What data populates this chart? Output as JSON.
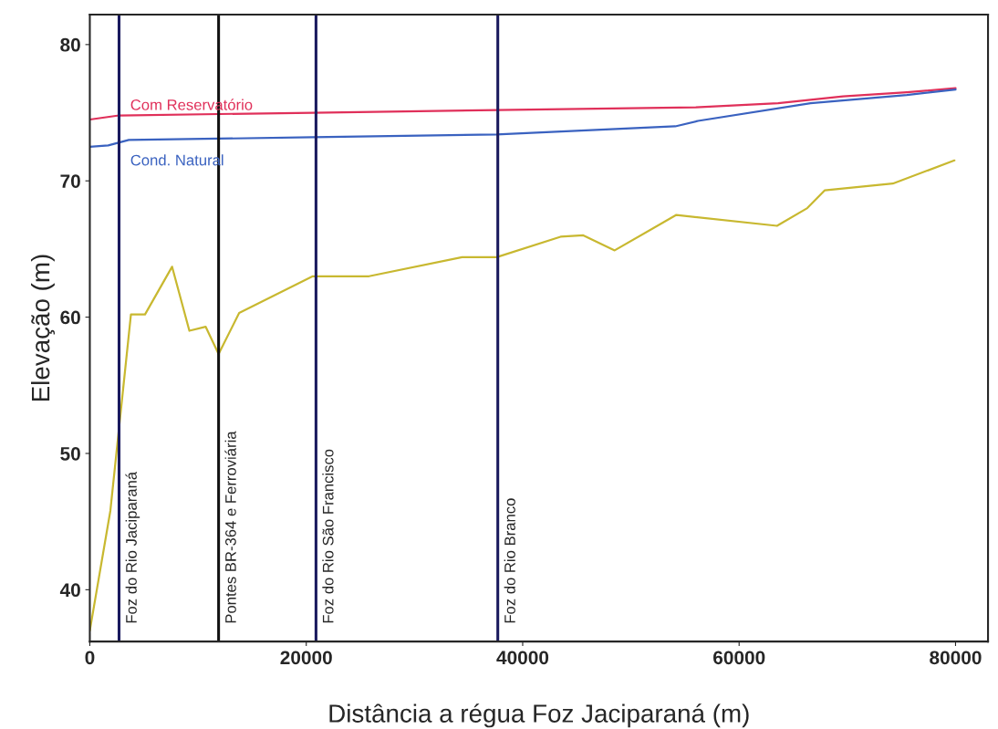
{
  "chart_data": {
    "type": "line",
    "xlabel": "Distância a régua Foz Jaciparaná (m)",
    "ylabel": "Elevação (m)",
    "xlim": [
      0,
      83000
    ],
    "xticks": [
      0,
      20000,
      40000,
      60000,
      80000
    ],
    "ylim": [
      36.2,
      82.2
    ],
    "yticks": [
      40,
      50,
      60,
      70,
      80
    ],
    "grid": false,
    "legend": false,
    "series": [
      {
        "name": "Com Reservatório",
        "color": "#e0305a",
        "x": [
          0,
          2700,
          20600,
          37600,
          56000,
          63600,
          69600,
          75500,
          80000
        ],
        "values": [
          74.5,
          74.8,
          75.0,
          75.2,
          75.4,
          75.7,
          76.2,
          76.5,
          76.8
        ]
      },
      {
        "name": "Cond. Natural",
        "color": "#3a62c0",
        "x": [
          0,
          1700,
          3600,
          20600,
          37600,
          54100,
          56200,
          66600,
          75500,
          80000
        ],
        "values": [
          72.5,
          72.6,
          73.0,
          73.2,
          73.4,
          74.0,
          74.4,
          75.7,
          76.3,
          76.7
        ]
      },
      {
        "color": "#c8b830",
        "x": [
          0,
          1900,
          3800,
          5100,
          7600,
          9200,
          10700,
          11900,
          13800,
          20600,
          25800,
          34400,
          37600,
          43500,
          45600,
          48500,
          54200,
          63500,
          66300,
          67900,
          74200,
          79900
        ],
        "values": [
          37.0,
          45.8,
          60.2,
          60.2,
          63.7,
          59.0,
          59.3,
          57.3,
          60.3,
          63.0,
          63.0,
          64.4,
          64.4,
          65.9,
          66.0,
          64.9,
          67.5,
          66.7,
          68.0,
          69.3,
          69.8,
          71.5
        ]
      }
    ],
    "ref_lines": [
      {
        "axis": "x",
        "value": 2700,
        "label": "Foz do Rio Jaciparaná",
        "color": "#1a1a5e"
      },
      {
        "axis": "x",
        "value": 11900,
        "label": "Pontes BR-364 e Ferroviária",
        "color": "#111111"
      },
      {
        "axis": "x",
        "value": 20900,
        "label": "Foz do Rio São Francisco",
        "color": "#1a1a5e"
      },
      {
        "axis": "x",
        "value": 37700,
        "label": "Foz do Rio Branco",
        "color": "#1a1a5e"
      }
    ]
  }
}
